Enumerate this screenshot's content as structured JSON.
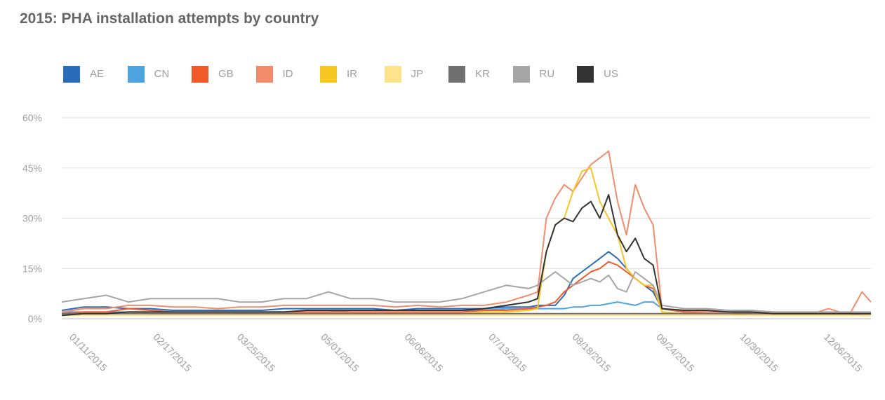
{
  "chart_data": {
    "type": "line",
    "title": "2015: PHA installation attempts by country",
    "xlabel": "",
    "ylabel": "",
    "y_unit": "%",
    "ylim": [
      0,
      60
    ],
    "y_ticks": [
      0,
      15,
      30,
      45,
      60
    ],
    "y_tick_labels": [
      "0%",
      "15%",
      "30%",
      "45%",
      "60%"
    ],
    "xlim": [
      "2015-01-01",
      "2015-12-31"
    ],
    "x_tick_labels": [
      "01/11/2015",
      "02/17/2015",
      "03/25/2015",
      "05/01/2015",
      "06/06/2015",
      "07/13/2015",
      "08/18/2015",
      "09/24/2015",
      "10/30/2015",
      "12/06/2015"
    ],
    "grid": true,
    "legend_position": "top-left",
    "dates": [
      "2015-01-01",
      "2015-01-11",
      "2015-01-21",
      "2015-01-31",
      "2015-02-10",
      "2015-02-20",
      "2015-03-02",
      "2015-03-12",
      "2015-03-22",
      "2015-04-01",
      "2015-04-11",
      "2015-04-21",
      "2015-05-01",
      "2015-05-11",
      "2015-05-21",
      "2015-05-31",
      "2015-06-10",
      "2015-06-20",
      "2015-06-30",
      "2015-07-10",
      "2015-07-20",
      "2015-07-30",
      "2015-08-03",
      "2015-08-07",
      "2015-08-11",
      "2015-08-15",
      "2015-08-19",
      "2015-08-23",
      "2015-08-27",
      "2015-08-31",
      "2015-09-04",
      "2015-09-08",
      "2015-09-12",
      "2015-09-16",
      "2015-09-20",
      "2015-09-24",
      "2015-09-28",
      "2015-10-08",
      "2015-10-18",
      "2015-10-28",
      "2015-11-07",
      "2015-11-17",
      "2015-11-27",
      "2015-12-07",
      "2015-12-12",
      "2015-12-17",
      "2015-12-22",
      "2015-12-27",
      "2015-12-31"
    ],
    "series": [
      {
        "name": "AE",
        "color": "#2b6cb8",
        "values": [
          2.5,
          3.5,
          3.5,
          3,
          3,
          2.5,
          2.5,
          2.5,
          2.5,
          2.5,
          3,
          3,
          3,
          3,
          3,
          2.5,
          3,
          3,
          3,
          3,
          3.5,
          3.5,
          4,
          4,
          4,
          7,
          12,
          14,
          16,
          18,
          20,
          18,
          15,
          12,
          10,
          8,
          3,
          2,
          2,
          2,
          2,
          1.5,
          1.5,
          1.5,
          1.5,
          1.5,
          1.5,
          1,
          1
        ]
      },
      {
        "name": "CN",
        "color": "#4fa3df",
        "values": [
          2,
          2,
          2,
          2,
          2,
          2,
          2,
          2,
          2,
          2,
          2,
          2,
          2,
          2.5,
          2.5,
          2.5,
          2.5,
          2.5,
          2.5,
          2.5,
          3,
          3,
          3,
          3,
          3,
          3,
          3.5,
          3.5,
          4,
          4,
          4.5,
          5,
          4.5,
          4,
          5,
          5,
          3,
          2,
          2,
          2,
          2,
          1.5,
          1.5,
          1.5,
          1.5,
          1.5,
          1.5,
          1.5,
          1.5
        ]
      },
      {
        "name": "GB",
        "color": "#f05a28",
        "values": [
          1.5,
          2,
          2,
          3,
          2.5,
          2,
          2,
          2,
          2,
          2,
          2,
          2,
          2,
          2,
          2,
          2,
          2,
          2,
          2,
          2.5,
          2.5,
          3,
          3.5,
          4,
          5,
          8,
          10,
          12,
          14,
          15,
          17,
          16,
          14,
          12,
          10,
          9,
          3,
          2,
          2,
          2,
          1.5,
          1.5,
          1.5,
          1.5,
          1.5,
          1.5,
          1.5,
          1.5,
          1.5
        ]
      },
      {
        "name": "ID",
        "color": "#f28c6d",
        "values": [
          2,
          3,
          3,
          4,
          4,
          3.5,
          3.5,
          3,
          3.5,
          3.5,
          4,
          4,
          4,
          4,
          4,
          3.5,
          4,
          3.5,
          4,
          4,
          5,
          7,
          8,
          30,
          36,
          40,
          38,
          42,
          46,
          48,
          50,
          35,
          25,
          40,
          33,
          28,
          3,
          2.5,
          2,
          2,
          2,
          2,
          2,
          2,
          3,
          2,
          2,
          8,
          5
        ]
      },
      {
        "name": "IR",
        "color": "#f7c623",
        "values": [
          1.5,
          1.5,
          1.5,
          2,
          1.5,
          1.5,
          1.5,
          1.5,
          1.5,
          1.5,
          1.5,
          1.5,
          1.5,
          1.5,
          1.5,
          1.5,
          1.5,
          1.5,
          1.5,
          2,
          2,
          2.5,
          3,
          20,
          28,
          30,
          38,
          44,
          45,
          35,
          30,
          25,
          15,
          12,
          10,
          10,
          2,
          1.5,
          1.5,
          1.5,
          1,
          1,
          1,
          1,
          1,
          1,
          1,
          1,
          1
        ]
      },
      {
        "name": "JP",
        "color": "#fde38b",
        "values": [
          1,
          1,
          1,
          1,
          1,
          1,
          1,
          1,
          1,
          1,
          1,
          1,
          1,
          1,
          1,
          1,
          1,
          1,
          1,
          1,
          1,
          1,
          1,
          1,
          1,
          1,
          1,
          1,
          1,
          1,
          1,
          1,
          1,
          1,
          1,
          1,
          1,
          1,
          1,
          1,
          1,
          1,
          1,
          1,
          1,
          1,
          1,
          1,
          1
        ]
      },
      {
        "name": "KR",
        "color": "#707070",
        "values": [
          1.5,
          1.5,
          1.5,
          1.5,
          1.5,
          1.5,
          1.5,
          1.5,
          1.5,
          1.5,
          1.5,
          1.5,
          1.5,
          1.5,
          1.5,
          1.5,
          1.5,
          1.5,
          1.5,
          1.5,
          1.5,
          1.5,
          1.5,
          1.5,
          1.5,
          1.5,
          1.5,
          1.5,
          1.5,
          1.5,
          1.5,
          1.5,
          1.5,
          1.5,
          1.5,
          1.5,
          1.5,
          1.5,
          1.5,
          1.5,
          1.5,
          1.5,
          1.5,
          1.5,
          1.5,
          1.5,
          1.5,
          1.5,
          1.5
        ]
      },
      {
        "name": "RU",
        "color": "#a6a6a6",
        "values": [
          5,
          6,
          7,
          5,
          6,
          6,
          6,
          6,
          5,
          5,
          6,
          6,
          8,
          6,
          6,
          5,
          5,
          5,
          6,
          8,
          10,
          9,
          10,
          12,
          14,
          12,
          10,
          11,
          12,
          11,
          13,
          9,
          8,
          14,
          12,
          10,
          4,
          3,
          3,
          2.5,
          2.5,
          2,
          2,
          2,
          2,
          2,
          2,
          2,
          2
        ]
      },
      {
        "name": "US",
        "color": "#333333",
        "values": [
          1,
          1.5,
          1.5,
          2,
          2,
          2,
          2,
          2,
          2,
          2,
          2,
          2.5,
          2.5,
          2.5,
          2.5,
          2.5,
          2.5,
          2.5,
          2.5,
          3,
          4,
          5,
          6,
          20,
          28,
          30,
          29,
          33,
          35,
          30,
          37,
          25,
          20,
          24,
          18,
          16,
          3,
          2.5,
          2.5,
          2,
          2,
          1.5,
          1.5,
          1.5,
          1.5,
          1.5,
          1.5,
          1.5,
          1.5
        ]
      }
    ]
  }
}
